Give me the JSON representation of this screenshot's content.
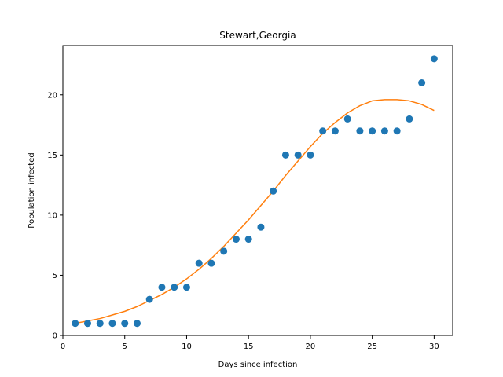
{
  "chart_data": {
    "type": "scatter",
    "title": "Stewart,Georgia",
    "xlabel": "Days since infection",
    "ylabel": "Population infected",
    "xlim": [
      0,
      31.5
    ],
    "ylim": [
      0,
      24.1
    ],
    "xticks": [
      0,
      5,
      10,
      15,
      20,
      25,
      30
    ],
    "yticks": [
      0,
      5,
      10,
      15,
      20
    ],
    "grid": false,
    "colors": {
      "points": "#1f77b4",
      "fit": "#ff7f0e",
      "axes": "#000000"
    },
    "series": [
      {
        "type": "scatter",
        "x": [
          1,
          2,
          3,
          4,
          5,
          6,
          7,
          8,
          9,
          10,
          11,
          12,
          13,
          14,
          15,
          16,
          17,
          18,
          19,
          20,
          21,
          22,
          23,
          24,
          25,
          26,
          27,
          28,
          29,
          30
        ],
        "y": [
          1,
          1,
          1,
          1,
          1,
          1,
          3,
          4,
          4,
          4,
          6,
          6,
          7,
          8,
          8,
          9,
          12,
          15,
          15,
          15,
          17,
          17,
          18,
          17,
          17,
          17,
          17,
          18,
          21,
          23
        ]
      },
      {
        "type": "line",
        "x": [
          1,
          2,
          3,
          4,
          5,
          6,
          7,
          8,
          9,
          10,
          11,
          12,
          13,
          14,
          15,
          16,
          17,
          18,
          19,
          20,
          21,
          22,
          23,
          24,
          25,
          26,
          27,
          28,
          29,
          30
        ],
        "y": [
          1.0,
          1.2,
          1.4,
          1.7,
          2.0,
          2.4,
          2.9,
          3.4,
          4.0,
          4.7,
          5.5,
          6.4,
          7.4,
          8.5,
          9.6,
          10.8,
          12.0,
          13.3,
          14.5,
          15.7,
          16.8,
          17.7,
          18.5,
          19.1,
          19.5,
          19.6,
          19.6,
          19.5,
          19.2,
          18.7
        ]
      }
    ]
  }
}
